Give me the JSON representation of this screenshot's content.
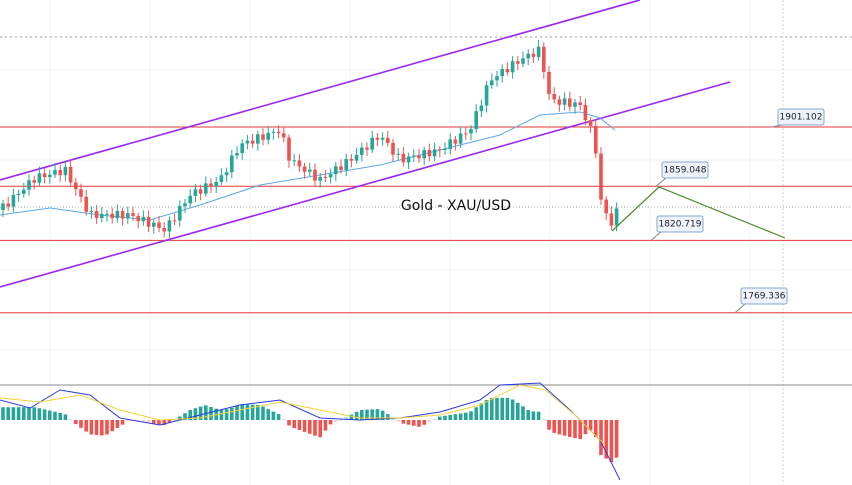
{
  "title": "Gold - XAU/USD",
  "levels": [
    1901.102,
    1859.048,
    1820.719,
    1769.336
  ]
}
